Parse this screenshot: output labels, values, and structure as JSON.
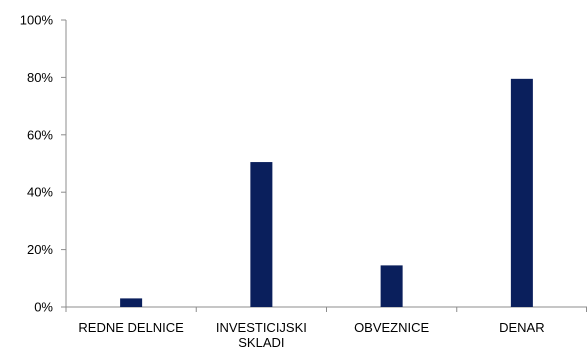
{
  "chart_data": {
    "type": "bar",
    "categories": [
      "REDNE DELNICE",
      "INVESTICIJSKI SKLADI",
      "OBVEZNICE",
      "DENAR"
    ],
    "category_label_lines": [
      [
        "REDNE DELNICE"
      ],
      [
        "INVESTICIJSKI",
        "SKLADI"
      ],
      [
        "OBVEZNICE"
      ],
      [
        "DENAR"
      ]
    ],
    "values": [
      3,
      50.5,
      14.5,
      79.5
    ],
    "ylim": [
      0,
      100
    ],
    "yticks": [
      0,
      20,
      40,
      60,
      80,
      100
    ],
    "ytick_labels": [
      "0%",
      "20%",
      "40%",
      "60%",
      "80%",
      "100%"
    ],
    "bar_color": "#0a1f5c",
    "grid": false,
    "legend": "none",
    "title": "",
    "xlabel": "",
    "ylabel": ""
  }
}
